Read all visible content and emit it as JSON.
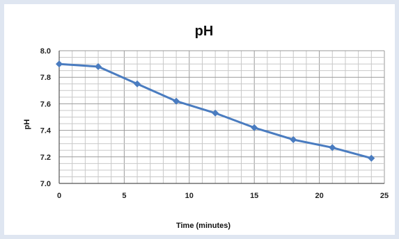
{
  "chart_data": {
    "type": "line",
    "title": "pH",
    "xlabel": "Time (minutes)",
    "ylabel": "pH",
    "xlim": [
      0,
      25
    ],
    "ylim": [
      7.0,
      8.0
    ],
    "x_ticks": [
      "0",
      "5",
      "10",
      "15",
      "20",
      "25"
    ],
    "y_ticks": [
      "7.0",
      "7.2",
      "7.4",
      "7.6",
      "7.8",
      "8.0"
    ],
    "grid": true,
    "legend": "none",
    "series": [
      {
        "color": "#4a7cc0",
        "points": [
          {
            "x": 0,
            "y": 7.9
          },
          {
            "x": 3,
            "y": 7.88
          },
          {
            "x": 6,
            "y": 7.75
          },
          {
            "x": 9,
            "y": 7.62
          },
          {
            "x": 12,
            "y": 7.53
          },
          {
            "x": 15,
            "y": 7.42
          },
          {
            "x": 18,
            "y": 7.33
          },
          {
            "x": 21,
            "y": 7.27
          },
          {
            "x": 24,
            "y": 7.19
          }
        ]
      }
    ]
  }
}
